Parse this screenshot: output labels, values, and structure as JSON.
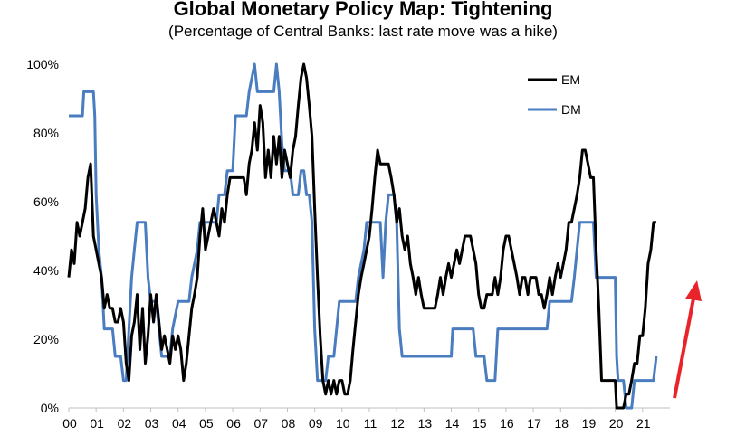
{
  "chart_data": {
    "type": "line",
    "title": "Global Monetary Policy Map: Tightening",
    "subtitle": "(Percentage of Central Banks: last rate move was a hike)",
    "xlabel": "",
    "ylabel": "",
    "x_ticks": [
      "00",
      "01",
      "02",
      "03",
      "04",
      "05",
      "06",
      "07",
      "08",
      "09",
      "10",
      "11",
      "12",
      "13",
      "14",
      "15",
      "16",
      "17",
      "18",
      "19",
      "20",
      "21"
    ],
    "y_ticks": [
      "0%",
      "20%",
      "40%",
      "60%",
      "80%",
      "100%"
    ],
    "ylim": [
      0,
      100
    ],
    "xlim": [
      2000.0,
      2022.0
    ],
    "grid": false,
    "legend_position": "top-right",
    "annotation": "red arrow pointing up",
    "series": [
      {
        "name": "EM",
        "color": "#000000",
        "points": [
          [
            2000.0,
            38
          ],
          [
            2000.1,
            46
          ],
          [
            2000.2,
            42
          ],
          [
            2000.3,
            54
          ],
          [
            2000.4,
            50
          ],
          [
            2000.5,
            54
          ],
          [
            2000.6,
            58
          ],
          [
            2000.7,
            67
          ],
          [
            2000.8,
            71
          ],
          [
            2000.9,
            50
          ],
          [
            2001.0,
            46
          ],
          [
            2001.1,
            42
          ],
          [
            2001.2,
            38
          ],
          [
            2001.3,
            29
          ],
          [
            2001.4,
            33
          ],
          [
            2001.5,
            29
          ],
          [
            2001.6,
            29
          ],
          [
            2001.7,
            25
          ],
          [
            2001.8,
            25
          ],
          [
            2001.9,
            29
          ],
          [
            2002.0,
            25
          ],
          [
            2002.1,
            13
          ],
          [
            2002.2,
            8
          ],
          [
            2002.3,
            21
          ],
          [
            2002.4,
            25
          ],
          [
            2002.5,
            33
          ],
          [
            2002.6,
            17
          ],
          [
            2002.7,
            29
          ],
          [
            2002.8,
            13
          ],
          [
            2002.9,
            21
          ],
          [
            2003.0,
            33
          ],
          [
            2003.1,
            25
          ],
          [
            2003.2,
            33
          ],
          [
            2003.3,
            25
          ],
          [
            2003.4,
            17
          ],
          [
            2003.5,
            21
          ],
          [
            2003.6,
            17
          ],
          [
            2003.7,
            13
          ],
          [
            2003.8,
            21
          ],
          [
            2003.9,
            17
          ],
          [
            2004.0,
            21
          ],
          [
            2004.1,
            17
          ],
          [
            2004.2,
            8
          ],
          [
            2004.3,
            13
          ],
          [
            2004.4,
            21
          ],
          [
            2004.5,
            29
          ],
          [
            2004.6,
            33
          ],
          [
            2004.7,
            38
          ],
          [
            2004.8,
            50
          ],
          [
            2004.9,
            58
          ],
          [
            2005.0,
            46
          ],
          [
            2005.1,
            50
          ],
          [
            2005.2,
            54
          ],
          [
            2005.3,
            58
          ],
          [
            2005.4,
            54
          ],
          [
            2005.5,
            50
          ],
          [
            2005.6,
            58
          ],
          [
            2005.7,
            54
          ],
          [
            2005.8,
            62
          ],
          [
            2005.9,
            67
          ],
          [
            2006.0,
            67
          ],
          [
            2006.2,
            67
          ],
          [
            2006.4,
            67
          ],
          [
            2006.5,
            62
          ],
          [
            2006.6,
            71
          ],
          [
            2006.7,
            75
          ],
          [
            2006.8,
            83
          ],
          [
            2006.9,
            75
          ],
          [
            2007.0,
            88
          ],
          [
            2007.1,
            83
          ],
          [
            2007.2,
            67
          ],
          [
            2007.3,
            75
          ],
          [
            2007.4,
            67
          ],
          [
            2007.5,
            79
          ],
          [
            2007.6,
            71
          ],
          [
            2007.7,
            79
          ],
          [
            2007.8,
            67
          ],
          [
            2007.9,
            75
          ],
          [
            2008.0,
            71
          ],
          [
            2008.1,
            67
          ],
          [
            2008.2,
            75
          ],
          [
            2008.3,
            79
          ],
          [
            2008.4,
            88
          ],
          [
            2008.5,
            96
          ],
          [
            2008.6,
            100
          ],
          [
            2008.7,
            96
          ],
          [
            2008.8,
            88
          ],
          [
            2008.9,
            79
          ],
          [
            2009.0,
            58
          ],
          [
            2009.1,
            38
          ],
          [
            2009.2,
            21
          ],
          [
            2009.3,
            8
          ],
          [
            2009.4,
            4
          ],
          [
            2009.5,
            8
          ],
          [
            2009.6,
            4
          ],
          [
            2009.7,
            8
          ],
          [
            2009.8,
            4
          ],
          [
            2009.9,
            8
          ],
          [
            2010.0,
            8
          ],
          [
            2010.1,
            4
          ],
          [
            2010.2,
            4
          ],
          [
            2010.3,
            8
          ],
          [
            2010.4,
            17
          ],
          [
            2010.5,
            25
          ],
          [
            2010.6,
            33
          ],
          [
            2010.7,
            38
          ],
          [
            2010.8,
            42
          ],
          [
            2010.9,
            46
          ],
          [
            2011.0,
            50
          ],
          [
            2011.1,
            58
          ],
          [
            2011.2,
            67
          ],
          [
            2011.3,
            75
          ],
          [
            2011.4,
            71
          ],
          [
            2011.5,
            71
          ],
          [
            2011.6,
            71
          ],
          [
            2011.7,
            71
          ],
          [
            2011.8,
            67
          ],
          [
            2011.9,
            62
          ],
          [
            2012.0,
            54
          ],
          [
            2012.1,
            58
          ],
          [
            2012.2,
            50
          ],
          [
            2012.3,
            46
          ],
          [
            2012.4,
            50
          ],
          [
            2012.5,
            42
          ],
          [
            2012.6,
            38
          ],
          [
            2012.7,
            33
          ],
          [
            2012.8,
            38
          ],
          [
            2012.9,
            33
          ],
          [
            2013.0,
            29
          ],
          [
            2013.2,
            29
          ],
          [
            2013.4,
            29
          ],
          [
            2013.5,
            33
          ],
          [
            2013.6,
            38
          ],
          [
            2013.7,
            33
          ],
          [
            2013.8,
            38
          ],
          [
            2013.9,
            42
          ],
          [
            2014.0,
            38
          ],
          [
            2014.1,
            42
          ],
          [
            2014.2,
            46
          ],
          [
            2014.3,
            42
          ],
          [
            2014.4,
            46
          ],
          [
            2014.5,
            50
          ],
          [
            2014.6,
            50
          ],
          [
            2014.7,
            50
          ],
          [
            2014.8,
            46
          ],
          [
            2014.9,
            42
          ],
          [
            2015.0,
            33
          ],
          [
            2015.1,
            29
          ],
          [
            2015.2,
            29
          ],
          [
            2015.3,
            33
          ],
          [
            2015.4,
            33
          ],
          [
            2015.5,
            33
          ],
          [
            2015.6,
            38
          ],
          [
            2015.7,
            33
          ],
          [
            2015.8,
            38
          ],
          [
            2015.9,
            46
          ],
          [
            2016.0,
            50
          ],
          [
            2016.1,
            50
          ],
          [
            2016.2,
            46
          ],
          [
            2016.3,
            42
          ],
          [
            2016.4,
            38
          ],
          [
            2016.5,
            33
          ],
          [
            2016.6,
            38
          ],
          [
            2016.7,
            38
          ],
          [
            2016.8,
            33
          ],
          [
            2016.9,
            38
          ],
          [
            2017.0,
            38
          ],
          [
            2017.1,
            38
          ],
          [
            2017.2,
            33
          ],
          [
            2017.3,
            33
          ],
          [
            2017.4,
            29
          ],
          [
            2017.5,
            33
          ],
          [
            2017.6,
            38
          ],
          [
            2017.7,
            33
          ],
          [
            2017.8,
            38
          ],
          [
            2017.9,
            42
          ],
          [
            2018.0,
            38
          ],
          [
            2018.1,
            42
          ],
          [
            2018.2,
            46
          ],
          [
            2018.3,
            54
          ],
          [
            2018.4,
            54
          ],
          [
            2018.5,
            58
          ],
          [
            2018.6,
            62
          ],
          [
            2018.7,
            67
          ],
          [
            2018.8,
            75
          ],
          [
            2018.9,
            75
          ],
          [
            2019.0,
            71
          ],
          [
            2019.1,
            67
          ],
          [
            2019.2,
            67
          ],
          [
            2019.3,
            46
          ],
          [
            2019.4,
            29
          ],
          [
            2019.5,
            8
          ],
          [
            2019.6,
            8
          ],
          [
            2019.8,
            8
          ],
          [
            2020.0,
            8
          ],
          [
            2020.05,
            0
          ],
          [
            2020.2,
            0
          ],
          [
            2020.3,
            0
          ],
          [
            2020.4,
            4
          ],
          [
            2020.5,
            4
          ],
          [
            2020.6,
            8
          ],
          [
            2020.7,
            13
          ],
          [
            2020.8,
            13
          ],
          [
            2020.9,
            21
          ],
          [
            2021.0,
            21
          ],
          [
            2021.1,
            29
          ],
          [
            2021.2,
            42
          ],
          [
            2021.3,
            46
          ],
          [
            2021.4,
            54
          ],
          [
            2021.5,
            54
          ]
        ]
      },
      {
        "name": "DM",
        "color": "#4a7cc0",
        "points": [
          [
            2000.0,
            85
          ],
          [
            2000.5,
            85
          ],
          [
            2000.55,
            92
          ],
          [
            2000.9,
            92
          ],
          [
            2000.95,
            85
          ],
          [
            2001.0,
            62
          ],
          [
            2001.1,
            46
          ],
          [
            2001.2,
            38
          ],
          [
            2001.3,
            23
          ],
          [
            2001.6,
            23
          ],
          [
            2001.7,
            15
          ],
          [
            2001.9,
            15
          ],
          [
            2002.0,
            8
          ],
          [
            2002.1,
            8
          ],
          [
            2002.2,
            23
          ],
          [
            2002.3,
            38
          ],
          [
            2002.4,
            46
          ],
          [
            2002.5,
            54
          ],
          [
            2002.8,
            54
          ],
          [
            2002.9,
            38
          ],
          [
            2003.0,
            31
          ],
          [
            2003.2,
            31
          ],
          [
            2003.3,
            23
          ],
          [
            2003.4,
            15
          ],
          [
            2003.7,
            15
          ],
          [
            2003.8,
            23
          ],
          [
            2004.0,
            31
          ],
          [
            2004.4,
            31
          ],
          [
            2004.5,
            38
          ],
          [
            2004.7,
            46
          ],
          [
            2004.8,
            54
          ],
          [
            2005.4,
            54
          ],
          [
            2005.5,
            62
          ],
          [
            2005.7,
            62
          ],
          [
            2005.8,
            69
          ],
          [
            2006.0,
            69
          ],
          [
            2006.1,
            85
          ],
          [
            2006.5,
            85
          ],
          [
            2006.6,
            92
          ],
          [
            2006.8,
            100
          ],
          [
            2006.9,
            92
          ],
          [
            2007.5,
            92
          ],
          [
            2007.6,
            100
          ],
          [
            2007.7,
            92
          ],
          [
            2007.8,
            77
          ],
          [
            2007.9,
            69
          ],
          [
            2008.0,
            69
          ],
          [
            2008.1,
            69
          ],
          [
            2008.2,
            62
          ],
          [
            2008.4,
            62
          ],
          [
            2008.5,
            69
          ],
          [
            2008.6,
            69
          ],
          [
            2008.7,
            62
          ],
          [
            2008.8,
            62
          ],
          [
            2008.9,
            54
          ],
          [
            2009.0,
            23
          ],
          [
            2009.1,
            8
          ],
          [
            2009.4,
            8
          ],
          [
            2009.5,
            15
          ],
          [
            2009.7,
            15
          ],
          [
            2009.8,
            23
          ],
          [
            2009.9,
            31
          ],
          [
            2010.5,
            31
          ],
          [
            2010.6,
            38
          ],
          [
            2010.8,
            46
          ],
          [
            2010.9,
            54
          ],
          [
            2011.4,
            54
          ],
          [
            2011.5,
            38
          ],
          [
            2011.6,
            54
          ],
          [
            2011.7,
            62
          ],
          [
            2011.9,
            62
          ],
          [
            2012.0,
            54
          ],
          [
            2012.1,
            23
          ],
          [
            2012.2,
            15
          ],
          [
            2012.4,
            15
          ],
          [
            2013.4,
            15
          ],
          [
            2013.5,
            15
          ],
          [
            2014.0,
            15
          ],
          [
            2014.05,
            23
          ],
          [
            2014.8,
            23
          ],
          [
            2014.9,
            15
          ],
          [
            2015.2,
            15
          ],
          [
            2015.3,
            8
          ],
          [
            2015.6,
            8
          ],
          [
            2015.7,
            23
          ],
          [
            2016.2,
            23
          ],
          [
            2016.5,
            23
          ],
          [
            2017.5,
            23
          ],
          [
            2017.6,
            31
          ],
          [
            2018.0,
            31
          ],
          [
            2018.4,
            31
          ],
          [
            2018.5,
            38
          ],
          [
            2018.6,
            46
          ],
          [
            2018.7,
            54
          ],
          [
            2019.2,
            54
          ],
          [
            2019.3,
            38
          ],
          [
            2019.8,
            38
          ],
          [
            2020.0,
            38
          ],
          [
            2020.05,
            15
          ],
          [
            2020.1,
            8
          ],
          [
            2020.3,
            8
          ],
          [
            2020.4,
            0
          ],
          [
            2020.6,
            0
          ],
          [
            2020.7,
            8
          ],
          [
            2021.3,
            8
          ],
          [
            2021.4,
            8
          ],
          [
            2021.5,
            15
          ]
        ]
      }
    ]
  }
}
